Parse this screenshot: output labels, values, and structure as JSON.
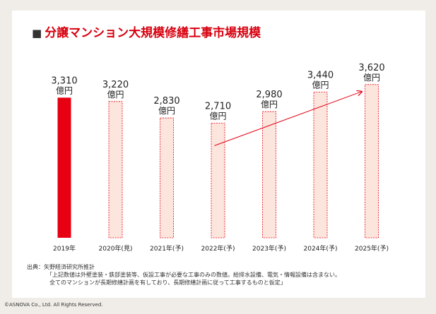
{
  "title": "分譲マンション大規模修繕工事市場規模",
  "title_marker": "■",
  "chart_data": {
    "type": "bar",
    "title": "分譲マンション大規模修繕工事市場規模",
    "categories": [
      "2019年",
      "2020年(見)",
      "2021年(予)",
      "2022年(予)",
      "2023年(予)",
      "2024年(予)",
      "2025年(予)"
    ],
    "values": [
      3310,
      3220,
      2830,
      2710,
      2980,
      3440,
      3620
    ],
    "value_labels": [
      "3,310",
      "3,220",
      "2,830",
      "2,710",
      "2,980",
      "3,440",
      "3,620"
    ],
    "unit": "億円",
    "ylim": [
      0,
      3800
    ],
    "xlabel": "",
    "ylabel": "",
    "grid": false,
    "colors": {
      "actual_fill": "#e60012",
      "forecast_fill": "#fce5dc",
      "forecast_border": "#e60012",
      "trend_arrow": "#e60012"
    },
    "annotations": [
      {
        "type": "trend-arrow",
        "from_category": "2022年(予)",
        "to_category": "2025年(予)"
      }
    ]
  },
  "notes": {
    "source": "出典：矢野経済研究所推計",
    "note_line1": "「上記数値は外壁塗装・鉄部塗装等、仮設工事が必要な工事のみの数値。給排水設備、電気・情報設備は含まない。",
    "note_line2": "全てのマンションが長期修繕計画を有しており、長期修繕計画に従って工事するものと仮定」"
  },
  "copyright": "©ASNOVA Co., Ltd. All Rights Reserved."
}
